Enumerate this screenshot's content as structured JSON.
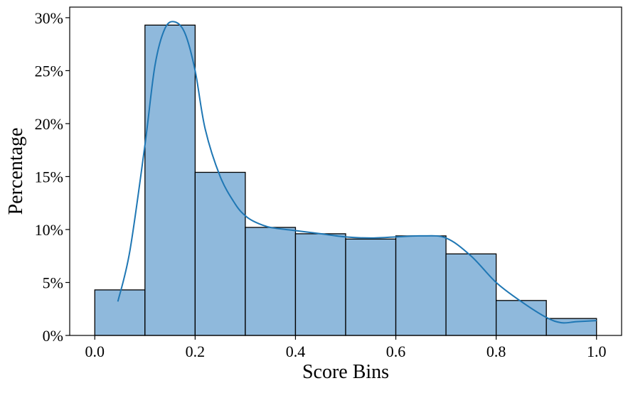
{
  "chart_data": {
    "type": "bar",
    "title": "",
    "xlabel": "Score Bins",
    "ylabel": "Percentage",
    "bin_edges": [
      0.0,
      0.1,
      0.2,
      0.3,
      0.4,
      0.5,
      0.6,
      0.7,
      0.8,
      0.9,
      1.0
    ],
    "values": [
      4.3,
      29.3,
      15.4,
      10.2,
      9.6,
      9.1,
      9.4,
      7.7,
      3.3,
      1.6
    ],
    "kde": {
      "x": [
        0.046,
        0.07,
        0.1,
        0.12,
        0.14,
        0.16,
        0.18,
        0.2,
        0.22,
        0.25,
        0.28,
        0.3,
        0.32,
        0.35,
        0.4,
        0.45,
        0.5,
        0.55,
        0.6,
        0.65,
        0.7,
        0.75,
        0.8,
        0.85,
        0.9,
        0.93,
        0.96,
        1.0
      ],
      "y": [
        3.2,
        8.0,
        18.0,
        25.5,
        29.0,
        29.6,
        28.5,
        25.0,
        19.5,
        15.0,
        12.4,
        11.3,
        10.7,
        10.2,
        9.9,
        9.6,
        9.3,
        9.2,
        9.3,
        9.4,
        9.2,
        7.5,
        5.0,
        3.2,
        1.7,
        1.2,
        1.3,
        1.4
      ]
    },
    "xlim": [
      -0.05,
      1.05
    ],
    "ylim": [
      0,
      31
    ],
    "x_ticks": [
      0.0,
      0.2,
      0.4,
      0.6,
      0.8,
      1.0
    ],
    "x_tick_labels": [
      "0.0",
      "0.2",
      "0.4",
      "0.6",
      "0.8",
      "1.0"
    ],
    "y_ticks": [
      0,
      5,
      10,
      15,
      20,
      25,
      30
    ],
    "y_tick_labels": [
      "0%",
      "5%",
      "10%",
      "15%",
      "20%",
      "25%",
      "30%"
    ],
    "grid": false,
    "bar_color": "#8fb9dc",
    "bar_edge_color": "#000000",
    "kde_color": "#1f77b4"
  }
}
